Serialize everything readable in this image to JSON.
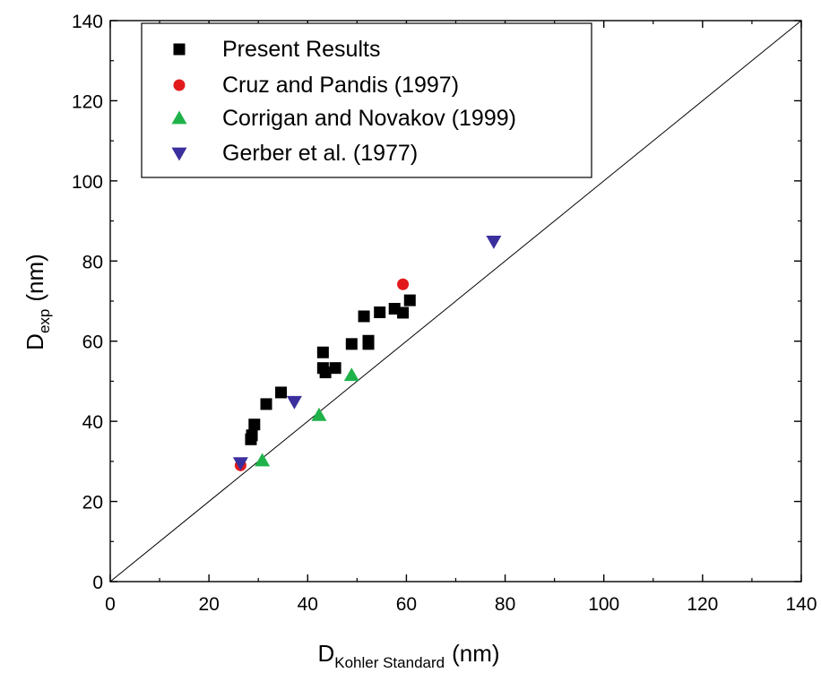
{
  "chart_data": {
    "type": "scatter",
    "xlabel": {
      "main": "D",
      "sub": "Kohler Standard",
      "unit": "(nm)"
    },
    "ylabel": {
      "main": "D",
      "sub": "exp",
      "unit": "(nm)"
    },
    "xlim": [
      0,
      140
    ],
    "ylim": [
      0,
      140
    ],
    "xticks": [
      "0",
      "20",
      "40",
      "60",
      "80",
      "100",
      "120",
      "140"
    ],
    "yticks": [
      "0",
      "20",
      "40",
      "60",
      "80",
      "100",
      "120",
      "140"
    ],
    "grid": false,
    "legend_position": "top-left",
    "reference_line": {
      "x": [
        0,
        140
      ],
      "y": [
        0,
        140
      ]
    },
    "series": [
      {
        "name": "Present Results",
        "marker": "square",
        "color": "#000000",
        "points": [
          [
            28.5,
            35.5
          ],
          [
            28.7,
            36.5
          ],
          [
            29.2,
            39.2
          ],
          [
            31.6,
            44.3
          ],
          [
            34.6,
            47.2
          ],
          [
            43.1,
            57.2
          ],
          [
            43.1,
            53.3
          ],
          [
            43.6,
            52.2
          ],
          [
            45.6,
            53.3
          ],
          [
            48.9,
            59.3
          ],
          [
            51.4,
            66.2
          ],
          [
            52.3,
            60.1
          ],
          [
            52.3,
            59.3
          ],
          [
            54.6,
            67.2
          ],
          [
            57.6,
            68.1
          ],
          [
            59.3,
            67.1
          ],
          [
            60.7,
            70.2
          ]
        ]
      },
      {
        "name": "Cruz and Pandis (1997)",
        "marker": "circle",
        "color": "#e31a1c",
        "points": [
          [
            26.4,
            29.0
          ],
          [
            59.3,
            74.2
          ]
        ]
      },
      {
        "name": "Corrigan and Novakov (1999)",
        "marker": "triangle-up",
        "color": "#1fb24a",
        "points": [
          [
            30.8,
            30.2
          ],
          [
            42.3,
            41.5
          ],
          [
            48.9,
            51.5
          ]
        ]
      },
      {
        "name": "Gerber et al. (1977)",
        "marker": "triangle-down",
        "color": "#3a2f9c",
        "points": [
          [
            26.4,
            29.6
          ],
          [
            37.3,
            44.9
          ],
          [
            77.7,
            84.9
          ]
        ]
      }
    ]
  }
}
